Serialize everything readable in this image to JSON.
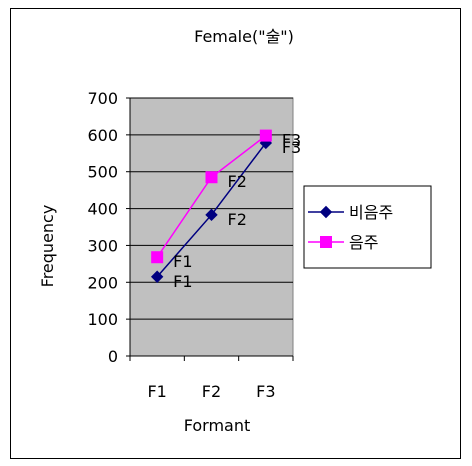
{
  "chart_data": {
    "type": "line",
    "title": "Female(\"술\")",
    "xlabel": "Formant",
    "ylabel": "Frequency",
    "categories": [
      "F1",
      "F2",
      "F3"
    ],
    "ylim": [
      0,
      700
    ],
    "yticks": [
      0,
      100,
      200,
      300,
      400,
      500,
      600,
      700
    ],
    "grid": true,
    "legend_position": "right",
    "plot_background": "#c0c0c0",
    "series": [
      {
        "name": "비음주",
        "values": [
          215,
          383,
          578
        ],
        "point_labels": [
          "F1",
          "F2",
          "F3"
        ],
        "color": "#000080",
        "marker": "diamond"
      },
      {
        "name": "음주",
        "values": [
          268,
          485,
          598
        ],
        "point_labels": [
          "F1",
          "F2",
          "F3"
        ],
        "color": "#ff00ff",
        "marker": "square"
      }
    ]
  }
}
